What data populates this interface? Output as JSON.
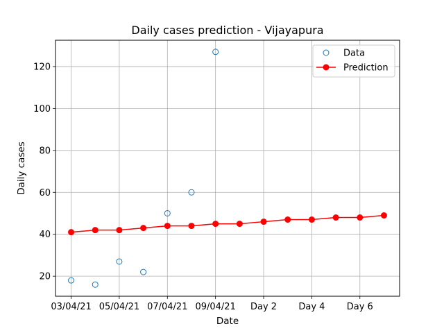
{
  "chart_data": {
    "type": "scatter+line",
    "title": "Daily cases prediction - Vijayapura",
    "xlabel": "Date",
    "ylabel": "Daily cases",
    "x_tick_labels": [
      "03/04/21",
      "05/04/21",
      "07/04/21",
      "09/04/21",
      "Day 2",
      "Day 4",
      "Day 6"
    ],
    "x_tick_positions": [
      0,
      2,
      4,
      6,
      8,
      10,
      12
    ],
    "y_ticks": [
      20,
      40,
      60,
      80,
      100,
      120
    ],
    "xlim": [
      -0.65,
      13.65
    ],
    "ylim": [
      10.45,
      132.55
    ],
    "grid": true,
    "legend_position": "top-right",
    "series": [
      {
        "name": "Data",
        "style": "hollow-markers",
        "color": "#1f77b4",
        "x": [
          0,
          1,
          2,
          3,
          4,
          5,
          6
        ],
        "y": [
          18,
          16,
          27,
          22,
          50,
          60,
          127
        ]
      },
      {
        "name": "Prediction",
        "style": "line-markers",
        "color": "#ff0000",
        "x": [
          0,
          1,
          2,
          3,
          4,
          5,
          6,
          7,
          8,
          9,
          10,
          11,
          12,
          13
        ],
        "y": [
          41,
          42,
          42,
          43,
          44,
          44,
          45,
          45,
          46,
          47,
          47,
          48,
          48,
          49
        ]
      }
    ]
  }
}
